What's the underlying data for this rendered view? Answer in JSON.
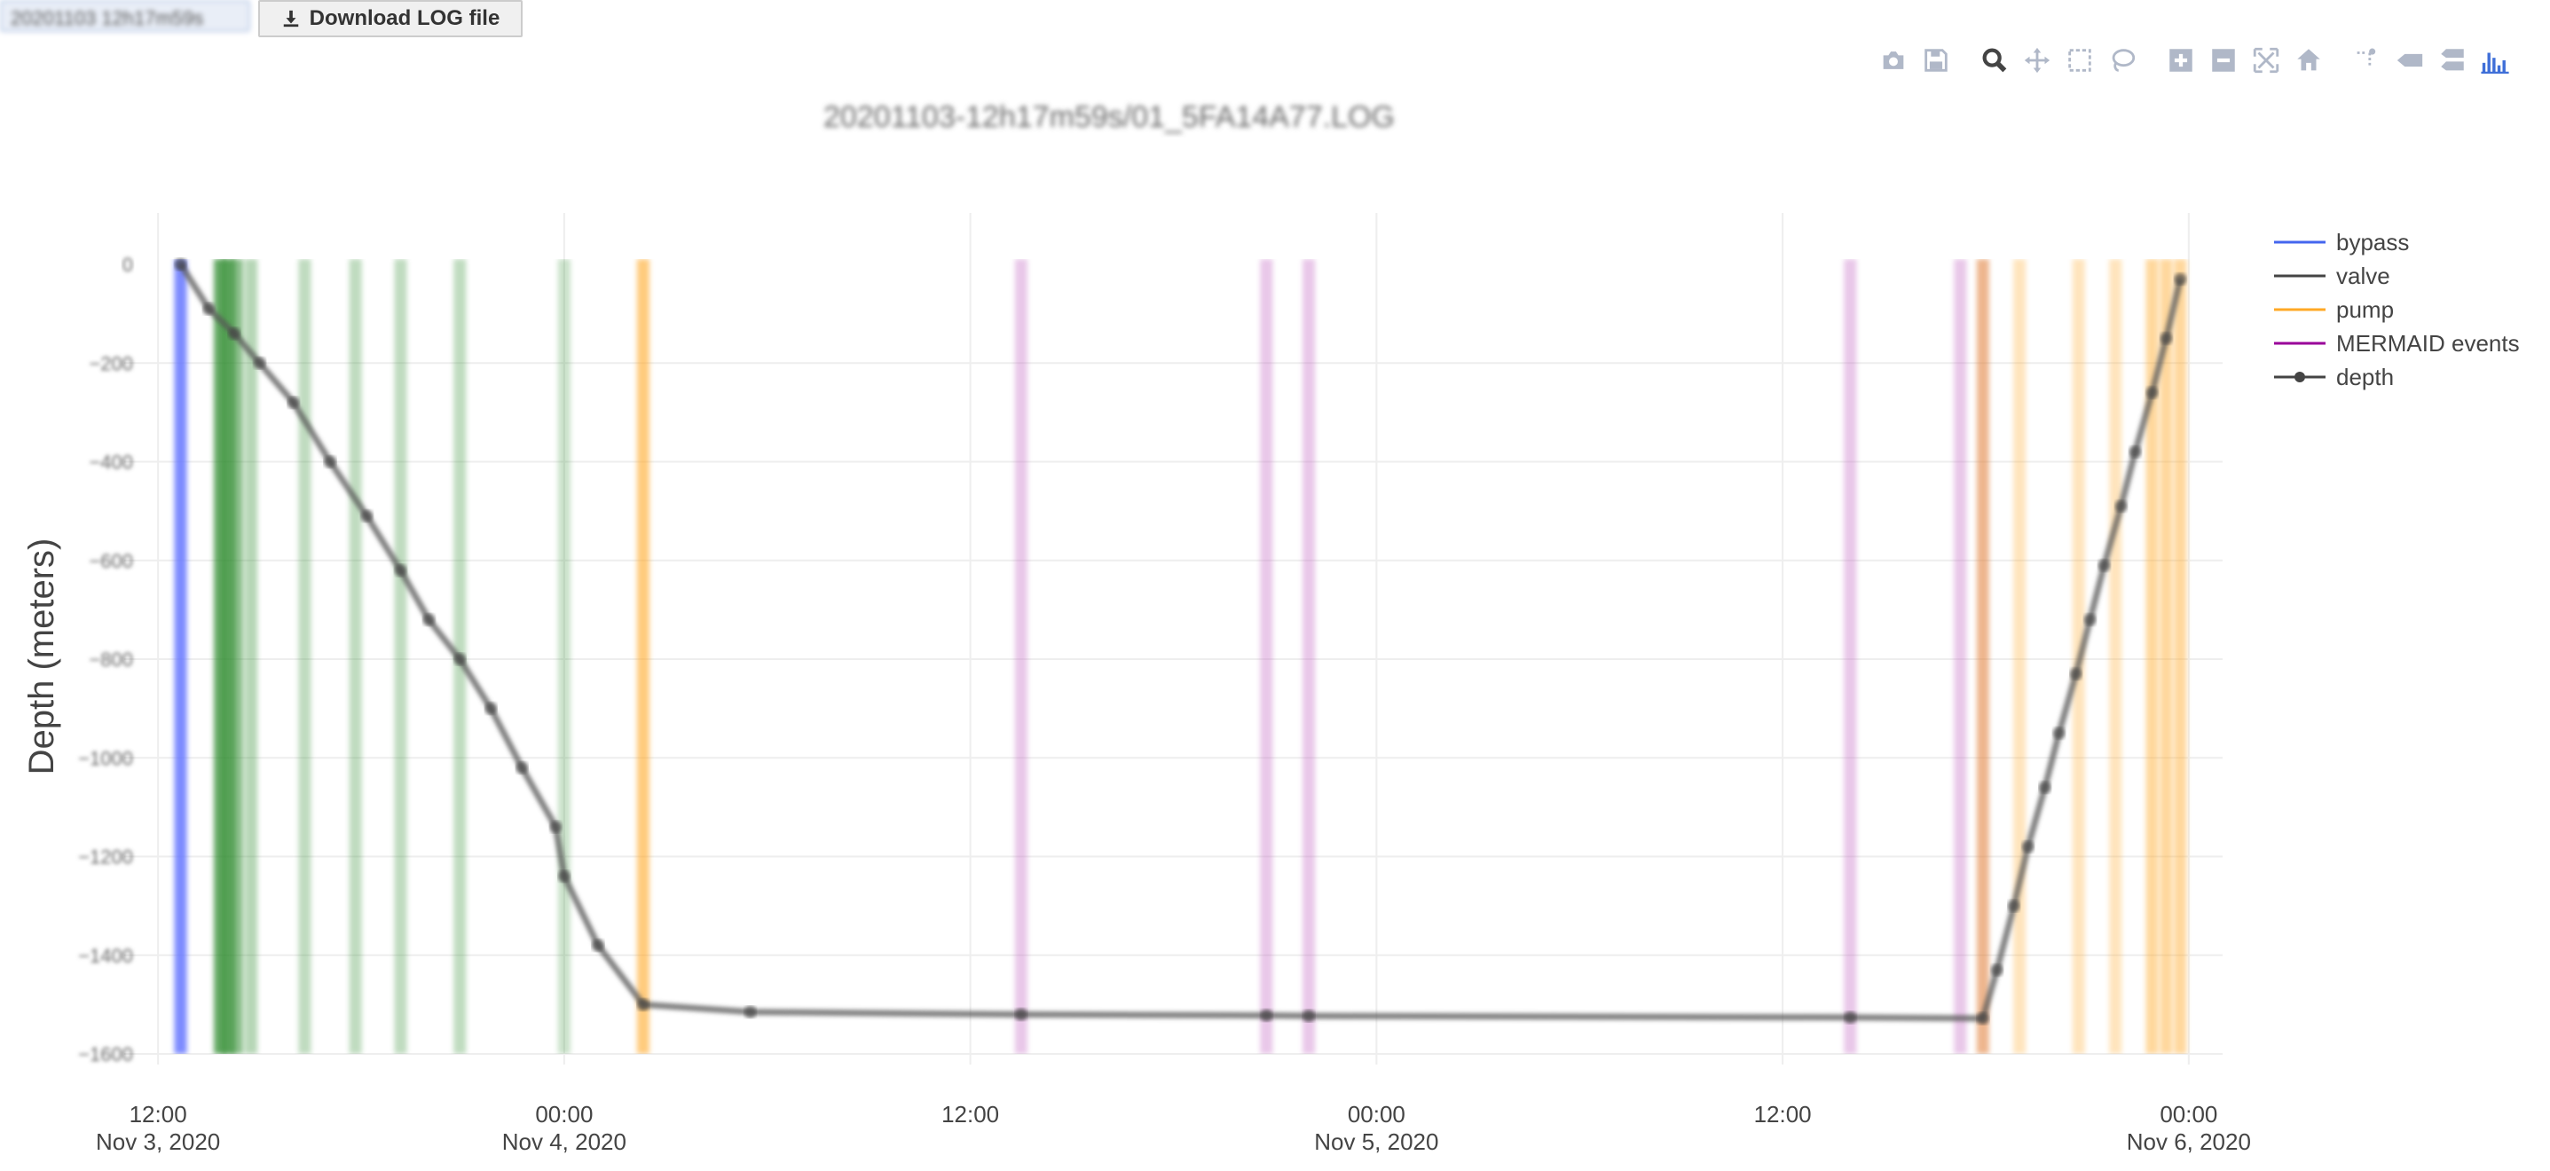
{
  "toolbar": {
    "date_select_value": "20201103 12h17m59s",
    "download_label": "Download LOG file"
  },
  "modebar": {
    "buttons": [
      "camera-icon",
      "save-icon",
      "zoom-icon",
      "pan-icon",
      "box-select-icon",
      "lasso-icon",
      "zoom-in-icon",
      "zoom-out-icon",
      "autoscale-icon",
      "home-icon",
      "spike-lines-icon",
      "hover-closest-icon",
      "hover-compare-icon",
      "plotly-logo-icon"
    ]
  },
  "chart_data": {
    "type": "line",
    "title": "20201103-12h17m59s/01_5FA14A77.LOG",
    "ylabel": "Depth (meters)",
    "xlabel": "",
    "x_range": [
      "2020-11-03T11:00",
      "2020-11-06T01:00"
    ],
    "ylim": [
      -1600,
      0
    ],
    "y_ticks": [
      0,
      -200,
      -400,
      -600,
      -800,
      -1000,
      -1200,
      -1400,
      -1600
    ],
    "x_ticks": [
      {
        "t": "2020-11-03T12:00",
        "line1": "12:00",
        "line2": "Nov 3, 2020"
      },
      {
        "t": "2020-11-04T00:00",
        "line1": "00:00",
        "line2": "Nov 4, 2020"
      },
      {
        "t": "2020-11-04T12:00",
        "line1": "12:00",
        "line2": ""
      },
      {
        "t": "2020-11-05T00:00",
        "line1": "00:00",
        "line2": "Nov 5, 2020"
      },
      {
        "t": "2020-11-05T12:00",
        "line1": "12:00",
        "line2": ""
      },
      {
        "t": "2020-11-06T00:00",
        "line1": "00:00",
        "line2": "Nov 6, 2020"
      }
    ],
    "grid": true,
    "legend_placement": "top-right",
    "legend": [
      {
        "name": "bypass",
        "color": "#4466ee",
        "marker": false
      },
      {
        "name": "valve",
        "color": "#444444",
        "marker": false
      },
      {
        "name": "pump",
        "color": "#ffa826",
        "marker": false
      },
      {
        "name": "MERMAID events",
        "color": "#990099",
        "marker": false
      },
      {
        "name": "depth",
        "color": "#444444",
        "marker": true
      }
    ],
    "bands": [
      {
        "series": "bypass",
        "t": "2020-11-03T12:40",
        "color": "#6677ff",
        "opacity": 0.85
      },
      {
        "series": "valve",
        "t": "2020-11-03T13:50",
        "color": "#2e8b2e",
        "opacity": 0.75
      },
      {
        "series": "valve",
        "t": "2020-11-03T14:05",
        "color": "#2e8b2e",
        "opacity": 0.75
      },
      {
        "series": "valve",
        "t": "2020-11-03T14:20",
        "color": "#2e8b2e",
        "opacity": 0.55
      },
      {
        "series": "valve",
        "t": "2020-11-03T14:45",
        "color": "#2e8b2e",
        "opacity": 0.35
      },
      {
        "series": "valve",
        "t": "2020-11-03T16:20",
        "color": "#2e8b2e",
        "opacity": 0.3
      },
      {
        "series": "valve",
        "t": "2020-11-03T17:50",
        "color": "#2e8b2e",
        "opacity": 0.3
      },
      {
        "series": "valve",
        "t": "2020-11-03T19:10",
        "color": "#2e8b2e",
        "opacity": 0.3
      },
      {
        "series": "valve",
        "t": "2020-11-03T20:55",
        "color": "#2e8b2e",
        "opacity": 0.3
      },
      {
        "series": "valve",
        "t": "2020-11-04T00:00",
        "color": "#2e8b2e",
        "opacity": 0.25
      },
      {
        "series": "pump",
        "t": "2020-11-04T02:20",
        "color": "#ffa826",
        "opacity": 0.6
      },
      {
        "series": "MERMAID events",
        "t": "2020-11-04T13:30",
        "color": "#c060c0",
        "opacity": 0.35
      },
      {
        "series": "MERMAID events",
        "t": "2020-11-04T20:45",
        "color": "#c060c0",
        "opacity": 0.35
      },
      {
        "series": "MERMAID events",
        "t": "2020-11-04T22:00",
        "color": "#c060c0",
        "opacity": 0.35
      },
      {
        "series": "MERMAID events",
        "t": "2020-11-05T14:00",
        "color": "#c060c0",
        "opacity": 0.35
      },
      {
        "series": "MERMAID events",
        "t": "2020-11-05T17:15",
        "color": "#c060c0",
        "opacity": 0.35
      },
      {
        "series": "pump",
        "t": "2020-11-05T17:55",
        "color": "#e07a30",
        "opacity": 0.55
      },
      {
        "series": "pump",
        "t": "2020-11-05T19:00",
        "color": "#ffa826",
        "opacity": 0.3
      },
      {
        "series": "pump",
        "t": "2020-11-05T20:45",
        "color": "#ffa826",
        "opacity": 0.3
      },
      {
        "series": "pump",
        "t": "2020-11-05T21:50",
        "color": "#ffa826",
        "opacity": 0.3
      },
      {
        "series": "pump",
        "t": "2020-11-05T22:55",
        "color": "#ffa826",
        "opacity": 0.45
      },
      {
        "series": "pump",
        "t": "2020-11-05T23:20",
        "color": "#ffa826",
        "opacity": 0.45
      },
      {
        "series": "pump",
        "t": "2020-11-05T23:45",
        "color": "#ffa826",
        "opacity": 0.45
      }
    ],
    "series": [
      {
        "name": "depth",
        "color": "#555555",
        "points": [
          [
            "2020-11-03T12:40",
            0
          ],
          [
            "2020-11-03T13:30",
            -90
          ],
          [
            "2020-11-03T14:15",
            -140
          ],
          [
            "2020-11-03T15:00",
            -200
          ],
          [
            "2020-11-03T16:00",
            -280
          ],
          [
            "2020-11-03T17:05",
            -400
          ],
          [
            "2020-11-03T18:10",
            -510
          ],
          [
            "2020-11-03T19:10",
            -620
          ],
          [
            "2020-11-03T20:00",
            -720
          ],
          [
            "2020-11-03T20:55",
            -800
          ],
          [
            "2020-11-03T21:50",
            -900
          ],
          [
            "2020-11-03T22:45",
            -1020
          ],
          [
            "2020-11-03T23:45",
            -1140
          ],
          [
            "2020-11-04T00:00",
            -1240
          ],
          [
            "2020-11-04T01:00",
            -1380
          ],
          [
            "2020-11-04T02:20",
            -1500
          ],
          [
            "2020-11-04T05:30",
            -1515
          ],
          [
            "2020-11-04T13:30",
            -1520
          ],
          [
            "2020-11-04T20:45",
            -1522
          ],
          [
            "2020-11-04T22:00",
            -1523
          ],
          [
            "2020-11-05T14:00",
            -1526
          ],
          [
            "2020-11-05T17:55",
            -1528
          ],
          [
            "2020-11-05T18:20",
            -1430
          ],
          [
            "2020-11-05T18:50",
            -1300
          ],
          [
            "2020-11-05T19:15",
            -1180
          ],
          [
            "2020-11-05T19:45",
            -1060
          ],
          [
            "2020-11-05T20:10",
            -950
          ],
          [
            "2020-11-05T20:40",
            -830
          ],
          [
            "2020-11-05T21:05",
            -720
          ],
          [
            "2020-11-05T21:30",
            -610
          ],
          [
            "2020-11-05T22:00",
            -490
          ],
          [
            "2020-11-05T22:25",
            -380
          ],
          [
            "2020-11-05T22:55",
            -260
          ],
          [
            "2020-11-05T23:20",
            -150
          ],
          [
            "2020-11-05T23:45",
            -30
          ]
        ]
      }
    ]
  }
}
